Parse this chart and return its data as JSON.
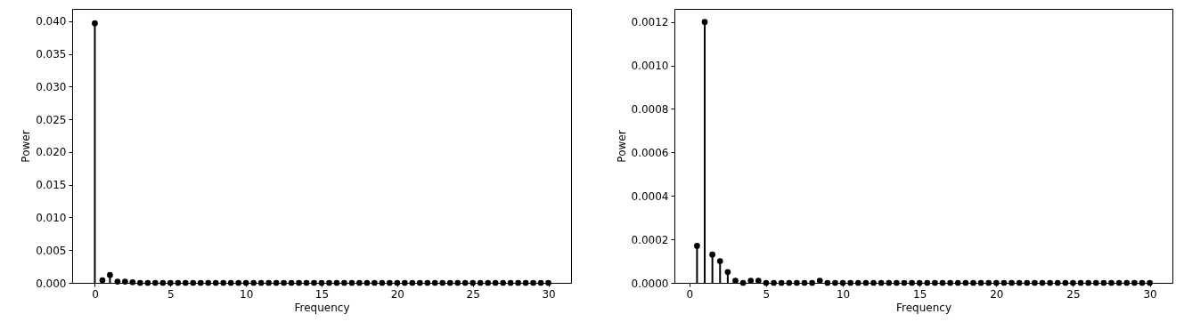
{
  "chart_data": [
    {
      "type": "lollipop",
      "xlabel": "Frequency",
      "ylabel": "Power",
      "marker": "circle",
      "x": [
        0,
        0.5,
        1,
        1.5,
        2,
        2.5,
        3,
        3.5,
        4,
        4.5,
        5,
        5.5,
        6,
        6.5,
        7,
        7.5,
        8,
        8.5,
        9,
        9.5,
        10,
        10.5,
        11,
        11.5,
        12,
        12.5,
        13,
        13.5,
        14,
        14.5,
        15,
        15.5,
        16,
        16.5,
        17,
        17.5,
        18,
        18.5,
        19,
        19.5,
        20,
        20.5,
        21,
        21.5,
        22,
        22.5,
        23,
        23.5,
        24,
        24.5,
        25,
        25.5,
        26,
        26.5,
        27,
        27.5,
        28,
        28.5,
        29,
        29.5,
        30
      ],
      "series": [
        {
          "color": "#000000",
          "values": [
            0.0397,
            0.0004,
            0.0012,
            0.0002,
            0.0002,
            0.0001,
            0,
            0,
            0,
            0,
            0,
            0,
            0,
            0,
            0,
            0,
            0,
            0,
            0,
            0,
            0,
            0,
            0,
            0,
            0,
            0,
            0,
            0,
            0,
            0,
            0,
            0,
            0,
            0,
            0,
            0,
            0,
            0,
            0,
            0,
            0,
            0,
            0,
            0,
            0,
            0,
            0,
            0,
            0,
            0,
            0,
            0,
            0,
            0,
            0,
            0,
            0,
            0,
            0,
            0,
            0
          ]
        }
      ],
      "xlim": [
        -1.5,
        31.5
      ],
      "xticks": [
        0,
        5,
        10,
        15,
        20,
        25,
        30
      ],
      "ylim": [
        0,
        0.0419
      ],
      "yticks": [
        {
          "value": 0,
          "label": "0.000"
        },
        {
          "value": 0.005,
          "label": "0.005"
        },
        {
          "value": 0.01,
          "label": "0.010"
        },
        {
          "value": 0.015,
          "label": "0.015"
        },
        {
          "value": 0.02,
          "label": "0.020"
        },
        {
          "value": 0.025,
          "label": "0.025"
        },
        {
          "value": 0.03,
          "label": "0.030"
        },
        {
          "value": 0.035,
          "label": "0.035"
        },
        {
          "value": 0.04,
          "label": "0.040"
        }
      ]
    },
    {
      "type": "lollipop",
      "xlabel": "Frequency",
      "ylabel": "Power",
      "marker": "circle",
      "x": [
        0.5,
        1,
        1.5,
        2,
        2.5,
        3,
        3.5,
        4,
        4.5,
        5,
        5.5,
        6,
        6.5,
        7,
        7.5,
        8,
        8.5,
        9,
        9.5,
        10,
        10.5,
        11,
        11.5,
        12,
        12.5,
        13,
        13.5,
        14,
        14.5,
        15,
        15.5,
        16,
        16.5,
        17,
        17.5,
        18,
        18.5,
        19,
        19.5,
        20,
        20.5,
        21,
        21.5,
        22,
        22.5,
        23,
        23.5,
        24,
        24.5,
        25,
        25.5,
        26,
        26.5,
        27,
        27.5,
        28,
        28.5,
        29,
        29.5,
        30
      ],
      "series": [
        {
          "color": "#000000",
          "values": [
            0.00017,
            0.0012,
            0.00013,
            0.0001,
            5e-05,
            1e-05,
            0,
            1e-05,
            1e-05,
            0,
            0,
            0,
            0,
            0,
            0,
            0,
            1e-05,
            0,
            0,
            0,
            0,
            0,
            0,
            0,
            0,
            0,
            0,
            0,
            0,
            0,
            0,
            0,
            0,
            0,
            0,
            0,
            0,
            0,
            0,
            0,
            0,
            0,
            0,
            0,
            0,
            0,
            0,
            0,
            0,
            0,
            0,
            0,
            0,
            0,
            0,
            0,
            0,
            0,
            0,
            0
          ]
        }
      ],
      "xlim": [
        -0.975,
        31.475
      ],
      "xticks": [
        0,
        5,
        10,
        15,
        20,
        25,
        30
      ],
      "ylim": [
        0,
        0.00126
      ],
      "yticks": [
        {
          "value": 0,
          "label": "0.0000"
        },
        {
          "value": 0.0002,
          "label": "0.0002"
        },
        {
          "value": 0.0004,
          "label": "0.0004"
        },
        {
          "value": 0.0006,
          "label": "0.0006"
        },
        {
          "value": 0.0008,
          "label": "0.0008"
        },
        {
          "value": 0.001,
          "label": "0.0010"
        },
        {
          "value": 0.0012,
          "label": "0.0012"
        }
      ]
    }
  ]
}
